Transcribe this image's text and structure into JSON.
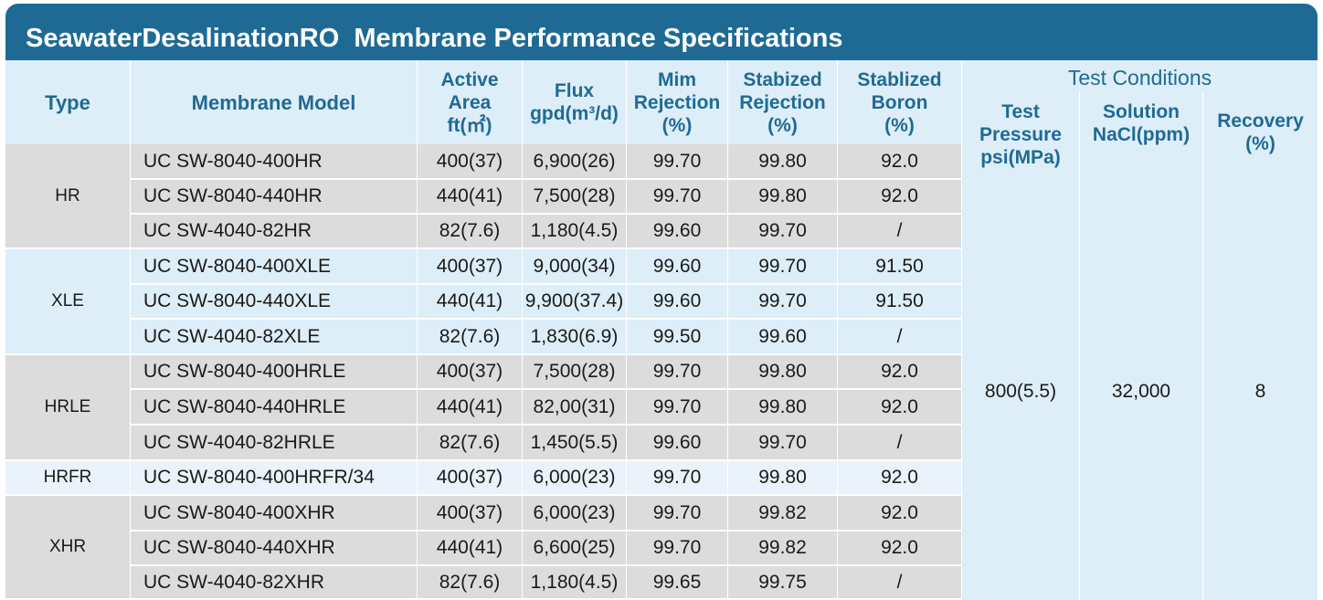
{
  "title": "SeawaterDesalinationRO  Membrane Performance Specifications",
  "headers": {
    "type": "Type",
    "model": "Membrane Model",
    "area": "Active\nArea\nft(㎡)",
    "flux": "Flux\ngpd(m³/d)",
    "min_rejection": "Mim\nRejection\n(%)",
    "stab_rejection": "Stabized\nRejection\n(%)",
    "boron": "Stablized\nBoron\n(%)",
    "test_conditions": "Test Conditions",
    "pressure": "Test\nPressure\npsi(MPa)",
    "solution": "Solution\nNaCl(ppm)",
    "recovery": "Recovery\n(%)"
  },
  "groups": [
    {
      "type": "HR",
      "rows": [
        {
          "model": "UC SW-8040-400HR",
          "area": "400(37)",
          "flux": "6,900(26)",
          "min_rej": "99.70",
          "stab_rej": "99.80",
          "boron": "92.0"
        },
        {
          "model": "UC SW-8040-440HR",
          "area": "440(41)",
          "flux": "7,500(28)",
          "min_rej": "99.70",
          "stab_rej": "99.80",
          "boron": "92.0"
        },
        {
          "model": "UC SW-4040-82HR",
          "area": "82(7.6)",
          "flux": "1,180(4.5)",
          "min_rej": "99.60",
          "stab_rej": "99.70",
          "boron": "/"
        }
      ]
    },
    {
      "type": "XLE",
      "rows": [
        {
          "model": "UC SW-8040-400XLE",
          "area": "400(37)",
          "flux": "9,000(34)",
          "min_rej": "99.60",
          "stab_rej": "99.70",
          "boron": "91.50"
        },
        {
          "model": "UC SW-8040-440XLE",
          "area": "440(41)",
          "flux": "9,900(37.4)",
          "min_rej": "99.60",
          "stab_rej": "99.70",
          "boron": "91.50"
        },
        {
          "model": "UC SW-4040-82XLE",
          "area": "82(7.6)",
          "flux": "1,830(6.9)",
          "min_rej": "99.50",
          "stab_rej": "99.60",
          "boron": "/"
        }
      ]
    },
    {
      "type": "HRLE",
      "rows": [
        {
          "model": "UC SW-8040-400HRLE",
          "area": "400(37)",
          "flux": "7,500(28)",
          "min_rej": "99.70",
          "stab_rej": "99.80",
          "boron": "92.0"
        },
        {
          "model": "UC SW-8040-440HRLE",
          "area": "440(41)",
          "flux": "82,00(31)",
          "min_rej": "99.70",
          "stab_rej": "99.80",
          "boron": "92.0"
        },
        {
          "model": "UC SW-4040-82HRLE",
          "area": "82(7.6)",
          "flux": "1,450(5.5)",
          "min_rej": "99.60",
          "stab_rej": "99.70",
          "boron": "/"
        }
      ]
    },
    {
      "type": "HRFR",
      "rows": [
        {
          "model": "UC SW-8040-400HRFR/34",
          "area": "400(37)",
          "flux": "6,000(23)",
          "min_rej": "99.70",
          "stab_rej": "99.80",
          "boron": "92.0"
        }
      ]
    },
    {
      "type": "XHR",
      "rows": [
        {
          "model": "UC SW-8040-400XHR",
          "area": "400(37)",
          "flux": "6,000(23)",
          "min_rej": "99.70",
          "stab_rej": "99.82",
          "boron": "92.0"
        },
        {
          "model": "UC SW-8040-440XHR",
          "area": "440(41)",
          "flux": "6,600(25)",
          "min_rej": "99.70",
          "stab_rej": "99.82",
          "boron": "92.0"
        },
        {
          "model": "UC SW-4040-82XHR",
          "area": "82(7.6)",
          "flux": "1,180(4.5)",
          "min_rej": "99.65",
          "stab_rej": "99.75",
          "boron": "/"
        }
      ]
    }
  ],
  "test_values": {
    "pressure": "800(5.5)",
    "solution": "32,000",
    "recovery": "8"
  },
  "colors": {
    "title_bar": "#1f6a94",
    "header_text": "#1f6a94",
    "row_gray": "#dcdcdc",
    "row_blue": "#ddeef8"
  }
}
